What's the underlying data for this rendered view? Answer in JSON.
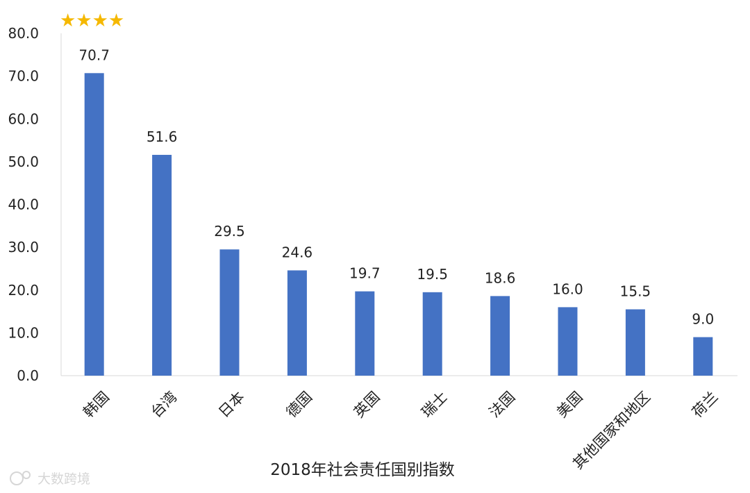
{
  "rating": {
    "stars": "★★★★",
    "color": "#f5b800"
  },
  "watermark": {
    "text": "大数跨境"
  },
  "chart_data": {
    "type": "bar",
    "xlabel": "2018年社会责任国别指数",
    "ylabel": "",
    "ylim": [
      0,
      80
    ],
    "yticks": [
      "0.0",
      "10.0",
      "20.0",
      "30.0",
      "40.0",
      "50.0",
      "60.0",
      "70.0",
      "80.0"
    ],
    "categories": [
      "韩国",
      "台湾",
      "日本",
      "德国",
      "英国",
      "瑞士",
      "法国",
      "美国",
      "其他国家和地区",
      "荷兰"
    ],
    "values": [
      70.7,
      51.6,
      29.5,
      24.6,
      19.7,
      19.5,
      18.6,
      16.0,
      15.5,
      9.0
    ],
    "value_labels": [
      "70.7",
      "51.6",
      "29.5",
      "24.6",
      "19.7",
      "19.5",
      "18.6",
      "16.0",
      "15.5",
      "9.0"
    ],
    "bar_color": "#4472c4",
    "grid": false
  }
}
